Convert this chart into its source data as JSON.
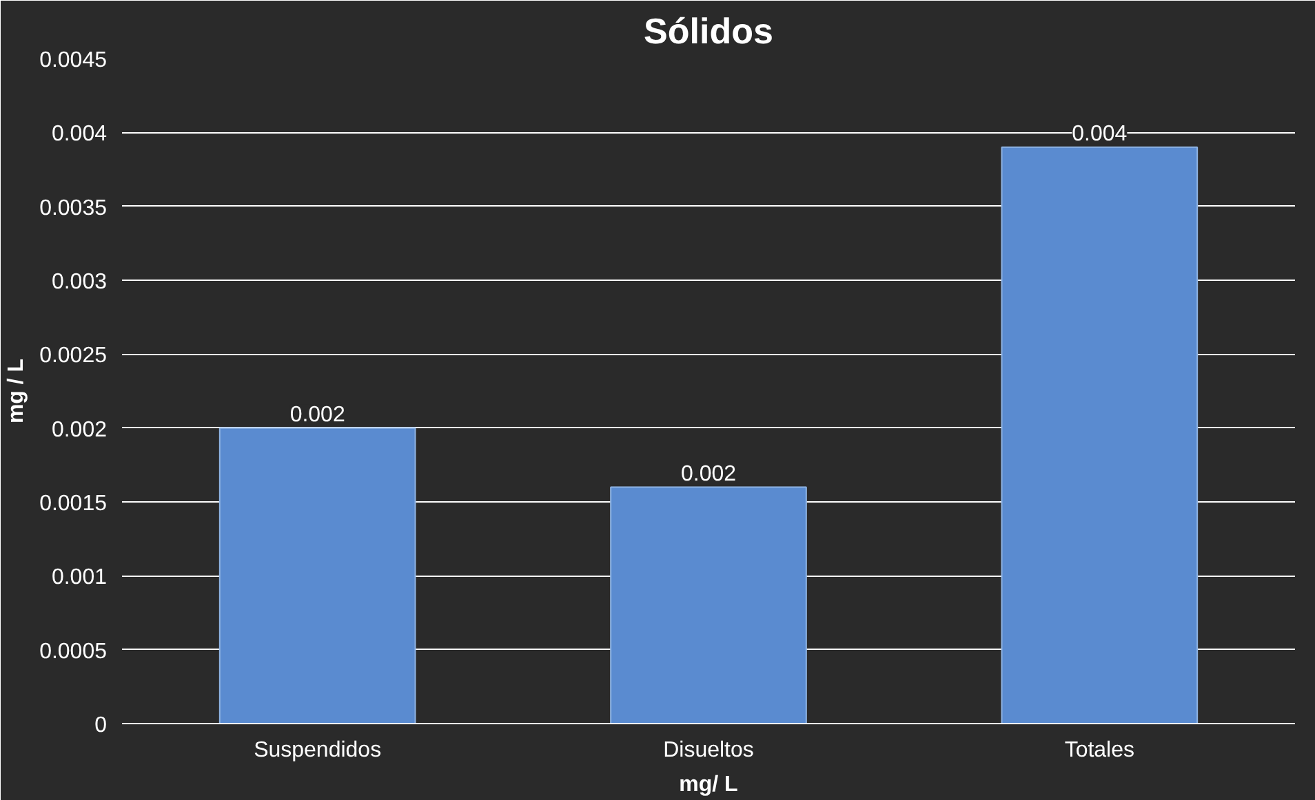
{
  "chart_data": {
    "type": "bar",
    "title": "Sólidos",
    "xlabel": "mg/ L",
    "ylabel": "mg / L",
    "categories": [
      "Suspendidos",
      "Disueltos",
      "Totales"
    ],
    "values": [
      0.002,
      0.0016,
      0.0039
    ],
    "value_labels": [
      "0.002",
      "0.002",
      "0.004"
    ],
    "color": "#5a8bd0",
    "ylim": [
      0,
      0.0045
    ],
    "yticks": [
      {
        "value": 0,
        "label": "0"
      },
      0.0005,
      0.001,
      0.0015,
      0.002,
      0.0025,
      0.003,
      0.0035,
      0.004,
      0.0045
    ],
    "grid": "y"
  }
}
